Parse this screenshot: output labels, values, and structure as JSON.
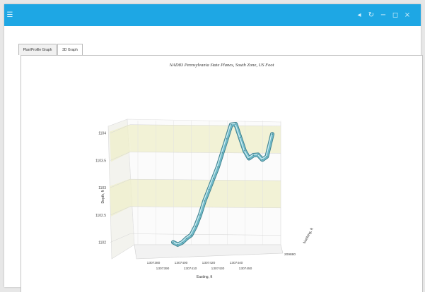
{
  "window": {
    "controls": [
      {
        "name": "pin-icon",
        "glyph": "◂"
      },
      {
        "name": "refresh-icon",
        "glyph": "↻"
      },
      {
        "name": "minimize-icon",
        "glyph": "−"
      },
      {
        "name": "maximize-icon",
        "glyph": "◻"
      },
      {
        "name": "close-icon",
        "glyph": "×"
      }
    ],
    "menu_icon": "☰"
  },
  "tabs": [
    {
      "label": "Plan/Profile Graph"
    },
    {
      "label": "3D Graph"
    }
  ],
  "colors": {
    "titlebar": "#1ea7e4",
    "tube": "#6fb9c7",
    "tube_dark": "#3f7f8c",
    "wall_band": "#efefc9"
  },
  "chart_data": {
    "type": "line3d",
    "title": "NAD83 Pennsylvania State Planes, South Zone, US Foot",
    "xlabel": "Easting, ft",
    "ylabel": "Depth, ft",
    "zlabel": "Northing, ft",
    "z_ticks": [
      "1104",
      "1103.5",
      "1103",
      "1102.5",
      "1102"
    ],
    "zlim": [
      1101.8,
      1104.1
    ],
    "x_ticks_row1": [
      "1307380",
      "1307400",
      "1307420",
      "1307440"
    ],
    "x_ticks_row2": [
      "1307390",
      "1307410",
      "1307430",
      "1307450"
    ],
    "y_ticks": [
      "209880"
    ],
    "series": [
      {
        "depth": [
          1102.0,
          1101.95,
          1101.98,
          1102.05,
          1102.1,
          1102.25,
          1102.45,
          1102.7,
          1102.9,
          1103.1,
          1103.3,
          1103.55,
          1103.8,
          1104.05,
          1104.05,
          1103.8,
          1103.55,
          1103.4,
          1103.45,
          1103.45,
          1103.35,
          1103.4,
          1103.8
        ],
        "progress": [
          0,
          0.045,
          0.09,
          0.135,
          0.18,
          0.225,
          0.27,
          0.315,
          0.36,
          0.405,
          0.45,
          0.495,
          0.54,
          0.585,
          0.63,
          0.675,
          0.72,
          0.765,
          0.81,
          0.855,
          0.9,
          0.945,
          1.0
        ]
      }
    ],
    "grid": true
  }
}
